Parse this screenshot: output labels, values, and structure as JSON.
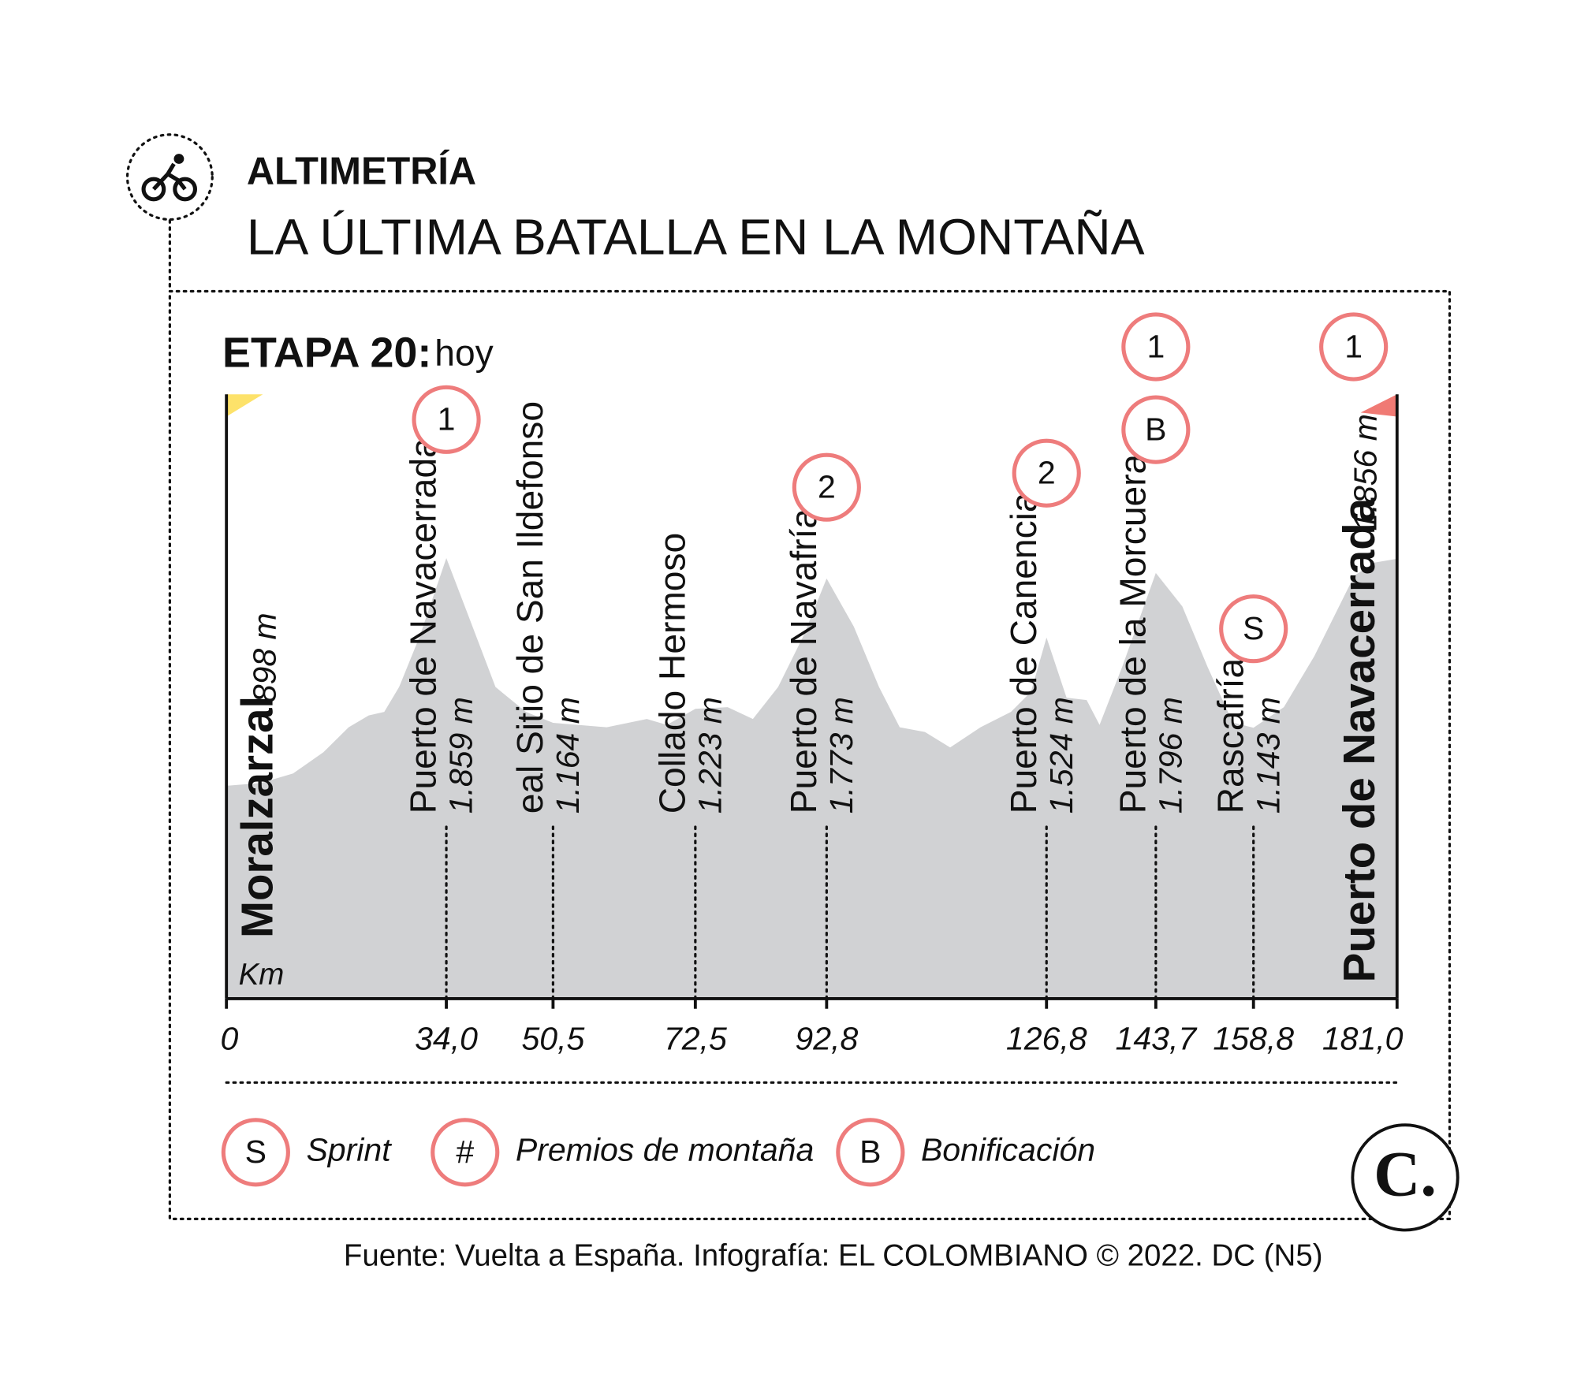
{
  "chart_data": {
    "type": "area",
    "kicker": "ALTIMETRÍA",
    "title": "LA ÚLTIMA BATALLA EN LA MONTAÑA",
    "stage": "ETAPA 20:",
    "stage_day": "hoy",
    "x_label": "Km",
    "color": "#d1d2d4",
    "x": [
      0,
      5.3,
      10.3,
      15,
      18.9,
      22,
      24.4,
      26.7,
      29.9,
      34,
      37.7,
      41.6,
      46.3,
      50.5,
      58.8,
      65,
      68.1,
      72.5,
      77.5,
      81.4,
      85.3,
      89.2,
      92.8,
      97,
      100.9,
      104.1,
      108,
      111.9,
      116.6,
      121.3,
      124.4,
      126.8,
      129.9,
      133,
      135,
      138.5,
      143.7,
      147.8,
      151.7,
      155.6,
      158.8,
      163.5,
      168.2,
      174.4,
      177.5,
      181
    ],
    "values": [
      898,
      910,
      950,
      1040,
      1145,
      1195,
      1210,
      1315,
      1530,
      1859,
      1595,
      1315,
      1210,
      1164,
      1145,
      1180,
      1155,
      1223,
      1230,
      1180,
      1315,
      1530,
      1773,
      1570,
      1315,
      1145,
      1125,
      1060,
      1145,
      1210,
      1295,
      1524,
      1270,
      1260,
      1155,
      1400,
      1796,
      1655,
      1400,
      1165,
      1143,
      1230,
      1445,
      1785,
      1840,
      1856
    ],
    "xlim": [
      0,
      181
    ],
    "ylim": [
      0,
      2550
    ],
    "xticks": [
      0,
      {
        "value": 34,
        "label": "34,0"
      },
      {
        "value": 50.5,
        "label": "50,5"
      },
      {
        "value": 72.5,
        "label": "72,5"
      },
      {
        "value": 92.8,
        "label": "92,8"
      },
      {
        "value": 126.8,
        "label": "126,8"
      },
      {
        "value": 143.7,
        "label": "143,7"
      },
      {
        "value": 158.8,
        "label": "158,8"
      },
      {
        "value": 181,
        "label": "181,0"
      }
    ],
    "start": {
      "name": "Moralzarzal",
      "elevation": "898 m"
    },
    "finish": {
      "name": "Puerto de Navacerrada",
      "elevation": "1.856 m",
      "badges": [
        "1"
      ]
    },
    "points": [
      {
        "name": "Puerto de Navacerrada",
        "elevation": "1.859 m",
        "badges": [
          "1"
        ]
      },
      {
        "name": "eal Sitio de San Ildefonso",
        "elevation": "1.164 m",
        "badges": []
      },
      {
        "name": "Collado Hermoso",
        "elevation": "1.223 m",
        "badges": []
      },
      {
        "name": "Puerto de Navafría",
        "elevation": "1.773 m",
        "badges": [
          "2"
        ]
      },
      {
        "name": "Puerto de Canencia",
        "elevation": "1.524 m",
        "badges": [
          "2"
        ]
      },
      {
        "name": "Puerto de la Morcuera",
        "elevation": "1.796 m",
        "badges": [
          "1",
          "B"
        ]
      },
      {
        "name": "Rascafría",
        "elevation": "1.143 m",
        "badges": [
          "S"
        ]
      }
    ],
    "legend": [
      {
        "symbol": "S",
        "label": "Sprint"
      },
      {
        "symbol": "#",
        "label": "Premios de montaña"
      },
      {
        "symbol": "B",
        "label": "Bonificación"
      }
    ],
    "logo": "C.",
    "source": "Fuente: Vuelta a España. Infografía: EL COLOMBIANO © 2022. DC (N5)"
  }
}
